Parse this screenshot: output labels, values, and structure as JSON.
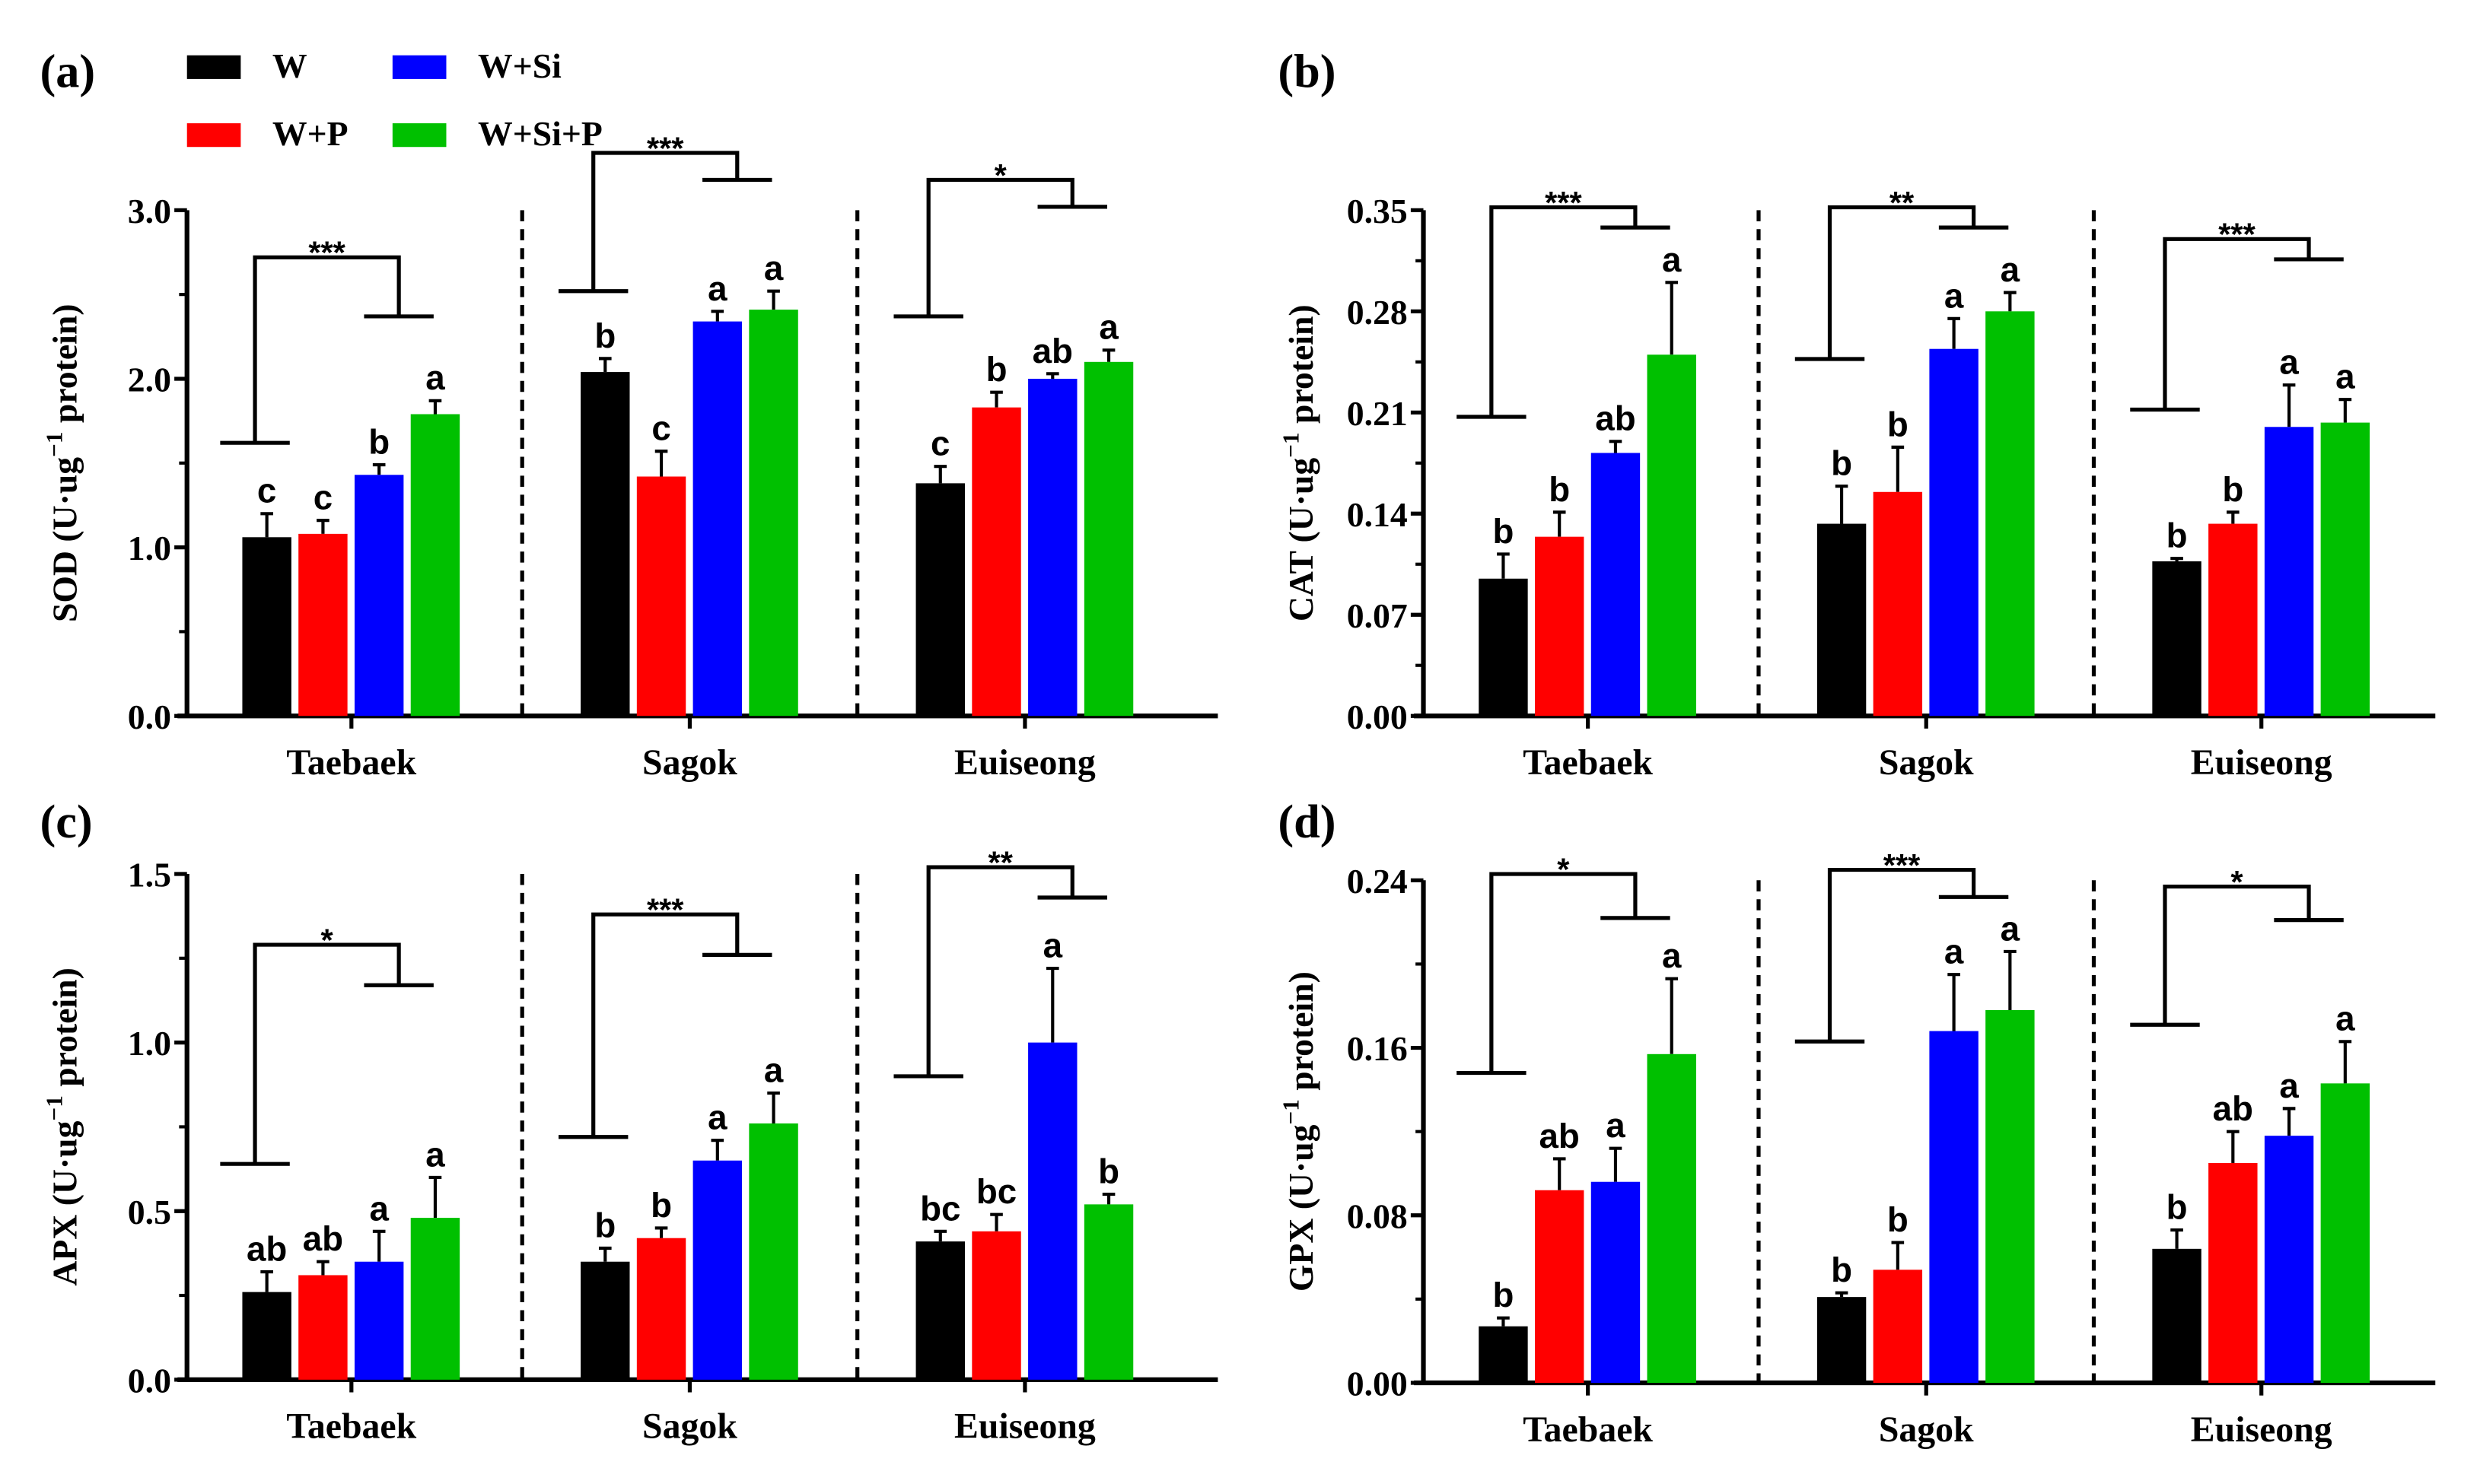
{
  "legend": [
    {
      "name": "W",
      "color": "#000000"
    },
    {
      "name": "W+P",
      "color": "#ff0000"
    },
    {
      "name": "W+Si",
      "color": "#0000ff"
    },
    {
      "name": "W+Si+P",
      "color": "#00c000"
    }
  ],
  "chart_data": [
    {
      "panel": "(a)",
      "type": "bar",
      "ylabel": {
        "prefix": "SOD (U·ug",
        "sup": "−1",
        "suffix": " protein)"
      },
      "ylim": [
        0,
        3.0
      ],
      "yticks": [
        "0.0",
        "1.0",
        "2.0",
        "3.0"
      ],
      "ytick_values": [
        0,
        1,
        2,
        3
      ],
      "categories": [
        "Taebaek",
        "Sagok",
        "Euiseong"
      ],
      "series": [
        {
          "name": "W",
          "values": [
            1.06,
            2.04,
            1.38
          ],
          "errors": [
            0.14,
            0.08,
            0.1
          ],
          "letters": [
            "c",
            "b",
            "c"
          ]
        },
        {
          "name": "W+P",
          "values": [
            1.08,
            1.42,
            1.83
          ],
          "errors": [
            0.08,
            0.15,
            0.09
          ],
          "letters": [
            "c",
            "c",
            "b"
          ]
        },
        {
          "name": "W+Si",
          "values": [
            1.43,
            2.34,
            2.0
          ],
          "errors": [
            0.06,
            0.06,
            0.03
          ],
          "letters": [
            "b",
            "a",
            "ab"
          ]
        },
        {
          "name": "W+Si+P",
          "values": [
            1.79,
            2.41,
            2.1
          ],
          "errors": [
            0.08,
            0.11,
            0.07
          ],
          "letters": [
            "a",
            "a",
            "a"
          ]
        }
      ],
      "significance": [
        {
          "label": "***",
          "levels": [
            1.62,
            2.72,
            2.37
          ]
        },
        {
          "label": "***",
          "levels": [
            2.52,
            3.34,
            3.18
          ]
        },
        {
          "label": "*",
          "levels": [
            2.37,
            3.18,
            3.02
          ]
        }
      ]
    },
    {
      "panel": "(b)",
      "type": "bar",
      "ylabel": {
        "prefix": "CAT (U·ug",
        "sup": "−1",
        "suffix": " protein)"
      },
      "ylim": [
        0,
        0.35
      ],
      "yticks": [
        "0.00",
        "0.07",
        "0.14",
        "0.21",
        "0.28",
        "0.35"
      ],
      "ytick_values": [
        0,
        0.07,
        0.14,
        0.21,
        0.28,
        0.35
      ],
      "categories": [
        "Taebaek",
        "Sagok",
        "Euiseong"
      ],
      "series": [
        {
          "name": "W",
          "values": [
            0.095,
            0.133,
            0.107
          ],
          "errors": [
            0.017,
            0.026,
            0.002
          ],
          "letters": [
            "b",
            "b",
            "b"
          ]
        },
        {
          "name": "W+P",
          "values": [
            0.124,
            0.155,
            0.133
          ],
          "errors": [
            0.017,
            0.031,
            0.008
          ],
          "letters": [
            "b",
            "b",
            "b"
          ]
        },
        {
          "name": "W+Si",
          "values": [
            0.182,
            0.254,
            0.2
          ],
          "errors": [
            0.008,
            0.021,
            0.029
          ],
          "letters": [
            "ab",
            "a",
            "a"
          ]
        },
        {
          "name": "W+Si+P",
          "values": [
            0.25,
            0.28,
            0.203
          ],
          "errors": [
            0.05,
            0.013,
            0.016
          ],
          "letters": [
            "a",
            "a",
            "a"
          ]
        }
      ],
      "significance": [
        {
          "label": "***",
          "levels": [
            0.207,
            0.352,
            0.338
          ]
        },
        {
          "label": "**",
          "levels": [
            0.247,
            0.352,
            0.338
          ]
        },
        {
          "label": "***",
          "levels": [
            0.212,
            0.33,
            0.316
          ]
        }
      ]
    },
    {
      "panel": "(c)",
      "type": "bar",
      "ylabel": {
        "prefix": "APX (U·ug",
        "sup": "−1",
        "suffix": " protein)"
      },
      "ylim": [
        0,
        1.5
      ],
      "yticks": [
        "0.0",
        "0.5",
        "1.0",
        "1.5"
      ],
      "ytick_values": [
        0,
        0.5,
        1.0,
        1.5
      ],
      "categories": [
        "Taebaek",
        "Sagok",
        "Euiseong"
      ],
      "series": [
        {
          "name": "W",
          "values": [
            0.26,
            0.35,
            0.41
          ],
          "errors": [
            0.06,
            0.04,
            0.03
          ],
          "letters": [
            "ab",
            "b",
            "bc"
          ]
        },
        {
          "name": "W+P",
          "values": [
            0.31,
            0.42,
            0.44
          ],
          "errors": [
            0.04,
            0.03,
            0.05
          ],
          "letters": [
            "ab",
            "b",
            "bc"
          ]
        },
        {
          "name": "W+Si",
          "values": [
            0.35,
            0.65,
            1.0
          ],
          "errors": [
            0.09,
            0.06,
            0.22
          ],
          "letters": [
            "a",
            "a",
            "a"
          ]
        },
        {
          "name": "W+Si+P",
          "values": [
            0.48,
            0.76,
            0.52
          ],
          "errors": [
            0.12,
            0.09,
            0.03
          ],
          "letters": [
            "a",
            "a",
            "b"
          ]
        }
      ],
      "significance": [
        {
          "label": "*",
          "levels": [
            0.64,
            1.29,
            1.17
          ]
        },
        {
          "label": "***",
          "levels": [
            0.72,
            1.38,
            1.26
          ]
        },
        {
          "label": "**",
          "levels": [
            0.9,
            1.52,
            1.43
          ]
        }
      ]
    },
    {
      "panel": "(d)",
      "type": "bar",
      "ylabel": {
        "prefix": "GPX (U·ug",
        "sup": "−1",
        "suffix": " protein)"
      },
      "ylim": [
        0,
        0.24
      ],
      "yticks": [
        "0.00",
        "0.08",
        "0.16",
        "0.24"
      ],
      "ytick_values": [
        0,
        0.08,
        0.16,
        0.24
      ],
      "categories": [
        "Taebaek",
        "Sagok",
        "Euiseong"
      ],
      "series": [
        {
          "name": "W",
          "values": [
            0.027,
            0.041,
            0.064
          ],
          "errors": [
            0.004,
            0.002,
            0.009
          ],
          "letters": [
            "b",
            "b",
            "b"
          ]
        },
        {
          "name": "W+P",
          "values": [
            0.092,
            0.054,
            0.105
          ],
          "errors": [
            0.015,
            0.013,
            0.015
          ],
          "letters": [
            "ab",
            "b",
            "ab"
          ]
        },
        {
          "name": "W+Si",
          "values": [
            0.096,
            0.168,
            0.118
          ],
          "errors": [
            0.016,
            0.027,
            0.013
          ],
          "letters": [
            "a",
            "a",
            "a"
          ]
        },
        {
          "name": "W+Si+P",
          "values": [
            0.157,
            0.178,
            0.143
          ],
          "errors": [
            0.036,
            0.028,
            0.02
          ],
          "letters": [
            "a",
            "a",
            "a"
          ]
        }
      ],
      "significance": [
        {
          "label": "*",
          "levels": [
            0.148,
            0.243,
            0.222
          ]
        },
        {
          "label": "***",
          "levels": [
            0.163,
            0.245,
            0.232
          ]
        },
        {
          "label": "*",
          "levels": [
            0.171,
            0.237,
            0.221
          ]
        }
      ]
    }
  ]
}
